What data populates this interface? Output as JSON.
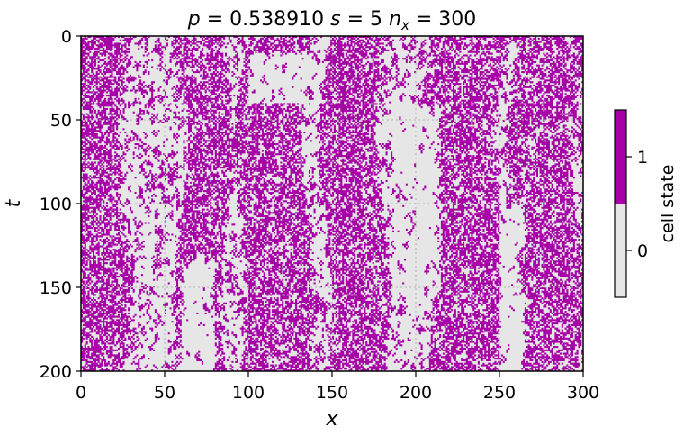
{
  "chart_data": {
    "type": "heatmap",
    "title": "p = 0.538910   s = 5   n_x = 300",
    "title_parts": {
      "p_symbol": "p",
      "p_value": "0.538910",
      "s_symbol": "s",
      "s_value": "5",
      "n_symbol": "n",
      "n_sub": "x",
      "n_value": "300"
    },
    "xlabel": "x",
    "ylabel": "t",
    "xlim": [
      0,
      300
    ],
    "ylim": [
      200,
      0
    ],
    "xticks": [
      "0",
      "50",
      "100",
      "150",
      "200",
      "250",
      "300"
    ],
    "yticks": [
      "0",
      "50",
      "100",
      "150",
      "200"
    ],
    "grid": true,
    "grid_style": "dotted",
    "colorbar": {
      "label": "cell state",
      "ticks": [
        "0",
        "1"
      ],
      "values": [
        0,
        1
      ],
      "colors": [
        "#e6e6e6",
        "#a600a6"
      ]
    },
    "dimensions": {
      "nx": 300,
      "nt": 200
    },
    "dense_bands": [
      [
        0,
        30
      ],
      [
        55,
        82
      ],
      [
        100,
        140
      ],
      [
        150,
        185
      ],
      [
        210,
        255
      ],
      [
        262,
        300
      ]
    ],
    "empty_regions": [
      {
        "x": [
          100,
          145
        ],
        "t": [
          10,
          40
        ]
      },
      {
        "x": [
          185,
          215
        ],
        "t": [
          40,
          160
        ]
      },
      {
        "x": [
          250,
          265
        ],
        "t": [
          100,
          200
        ]
      },
      {
        "x": [
          60,
          80
        ],
        "t": [
          130,
          200
        ]
      }
    ]
  }
}
